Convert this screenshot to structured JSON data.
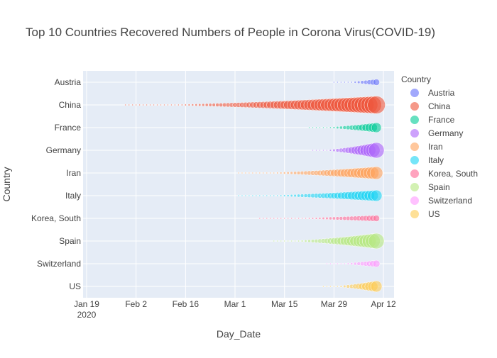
{
  "chart_data": {
    "type": "scatter",
    "title": "Top 10 Countries Recovered Numbers of People in Corona Virus(COVID-19)",
    "xlabel": "Day_Date",
    "ylabel": "Country",
    "x_range": [
      "2020-01-18",
      "2020-04-15"
    ],
    "x_ticks": [
      {
        "date": "2020-01-19",
        "label": "Jan 19",
        "sub": "2020"
      },
      {
        "date": "2020-02-02",
        "label": "Feb 2",
        "sub": ""
      },
      {
        "date": "2020-02-16",
        "label": "Feb 16",
        "sub": ""
      },
      {
        "date": "2020-03-01",
        "label": "Mar 1",
        "sub": ""
      },
      {
        "date": "2020-03-15",
        "label": "Mar 15",
        "sub": ""
      },
      {
        "date": "2020-03-29",
        "label": "Mar 29",
        "sub": ""
      },
      {
        "date": "2020-04-12",
        "label": "Apr 12",
        "sub": ""
      }
    ],
    "categories": [
      "Austria",
      "China",
      "France",
      "Germany",
      "Iran",
      "Italy",
      "Korea, South",
      "Spain",
      "Switzerland",
      "US"
    ],
    "legend": {
      "title": "Country",
      "placement": "right"
    },
    "grid": true,
    "plot_background": "#E5ECF6",
    "series": [
      {
        "name": "Austria",
        "color": "#636EFA",
        "start": "2020-03-29",
        "end": "2020-04-10",
        "max_size": 9
      },
      {
        "name": "China",
        "color": "#EF553B",
        "start": "2020-01-30",
        "end": "2020-04-10",
        "max_size": 25
      },
      {
        "name": "France",
        "color": "#00CC96",
        "start": "2020-03-22",
        "end": "2020-04-10",
        "max_size": 14
      },
      {
        "name": "Germany",
        "color": "#AB63FA",
        "start": "2020-03-23",
        "end": "2020-04-10",
        "max_size": 22
      },
      {
        "name": "Iran",
        "color": "#FFA15A",
        "start": "2020-03-02",
        "end": "2020-04-10",
        "max_size": 18
      },
      {
        "name": "Italy",
        "color": "#19D3F3",
        "start": "2020-03-02",
        "end": "2020-04-10",
        "max_size": 16
      },
      {
        "name": "Korea, South",
        "color": "#FF6692",
        "start": "2020-03-08",
        "end": "2020-04-10",
        "max_size": 9
      },
      {
        "name": "Spain",
        "color": "#B6E880",
        "start": "2020-03-12",
        "end": "2020-04-10",
        "max_size": 22
      },
      {
        "name": "Switzerland",
        "color": "#FF97FF",
        "start": "2020-03-27",
        "end": "2020-04-10",
        "max_size": 10
      },
      {
        "name": "US",
        "color": "#FECB52",
        "start": "2020-03-26",
        "end": "2020-04-10",
        "max_size": 16
      }
    ]
  }
}
